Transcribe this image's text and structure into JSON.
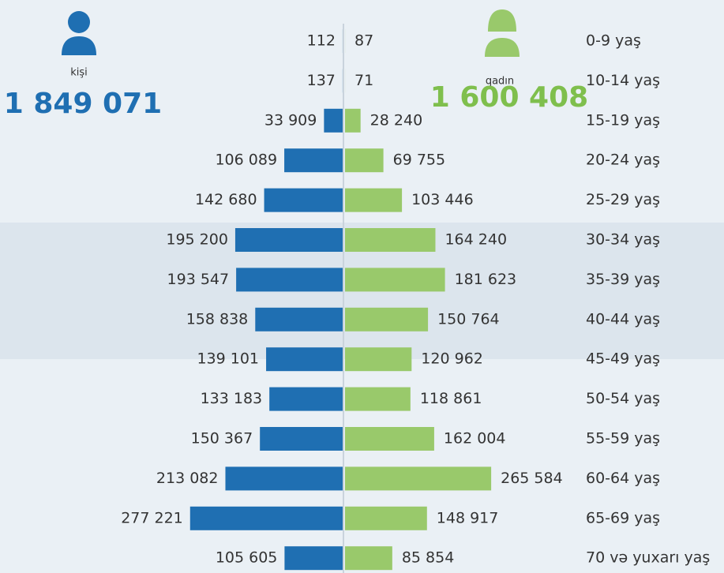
{
  "chart_data": {
    "type": "pyramid",
    "categories": [
      "0-9 yaş",
      "10-14 yaş",
      "15-19 yaş",
      "20-24 yaş",
      "25-29 yaş",
      "30-34 yaş",
      "35-39 yaş",
      "40-44 yaş",
      "45-49 yaş",
      "50-54 yaş",
      "55-59 yaş",
      "60-64 yaş",
      "65-69 yaş",
      "70 və yuxarı yaş"
    ],
    "series": [
      {
        "name": "kişi",
        "color": "#1f6fb2",
        "total": 1849071,
        "total_label": "1 849 071",
        "values": [
          112,
          137,
          33909,
          106089,
          142680,
          195200,
          193547,
          158838,
          139101,
          133183,
          150367,
          213082,
          277221,
          105605
        ],
        "value_labels": [
          "112",
          "137",
          "33 909",
          "106 089",
          "142 680",
          "195 200",
          "193 547",
          "158 838",
          "139 101",
          "133 183",
          "150 367",
          "213 082",
          "277 221",
          "105 605"
        ]
      },
      {
        "name": "qadın",
        "color": "#99c96b",
        "total": 1600408,
        "total_label": "1 600 408",
        "values": [
          87,
          71,
          28240,
          69755,
          103446,
          164240,
          181623,
          150764,
          120962,
          118861,
          162004,
          265584,
          148917,
          85854
        ],
        "value_labels": [
          "87",
          "71",
          "28 240",
          "69 755",
          "103 446",
          "164 240",
          "181 623",
          "150 764",
          "120 962",
          "118 861",
          "162 004",
          "265 584",
          "148 917",
          "85 854"
        ]
      }
    ]
  }
}
